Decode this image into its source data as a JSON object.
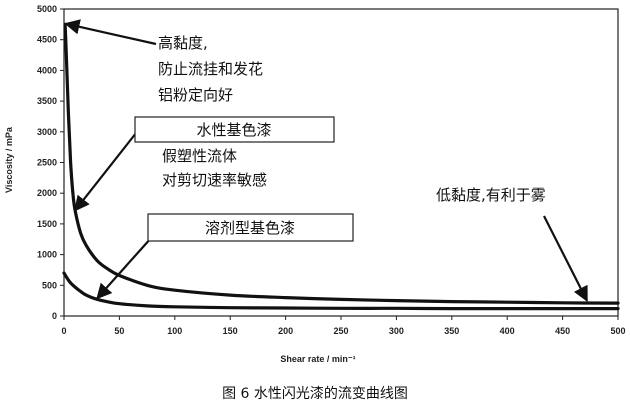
{
  "caption": "图 6 水性闪光漆的流变曲线图",
  "chart_data": {
    "type": "line",
    "xlabel": "Shear rate / min⁻¹",
    "ylabel": "Viscosity / mPa",
    "xlim": [
      0,
      500
    ],
    "ylim": [
      0,
      5000
    ],
    "x_ticks": [
      0,
      50,
      100,
      150,
      200,
      250,
      300,
      350,
      400,
      450,
      500
    ],
    "y_ticks": [
      0,
      500,
      1000,
      1500,
      2000,
      2500,
      3000,
      3500,
      4000,
      4500,
      5000
    ],
    "grid": false,
    "series": [
      {
        "name": "水性基色漆",
        "x": [
          1,
          2,
          4,
          6,
          8,
          10,
          15,
          20,
          30,
          40,
          50,
          75,
          100,
          150,
          200,
          250,
          300,
          350,
          400,
          450,
          500
        ],
        "y": [
          4750,
          4300,
          3300,
          2500,
          2000,
          1720,
          1350,
          1150,
          900,
          760,
          660,
          500,
          420,
          340,
          300,
          270,
          250,
          235,
          225,
          215,
          210
        ]
      },
      {
        "name": "溶剂型基色漆",
        "x": [
          0,
          5,
          10,
          15,
          20,
          30,
          40,
          50,
          75,
          100,
          150,
          200,
          250,
          300,
          350,
          400,
          450,
          500
        ],
        "y": [
          700,
          560,
          470,
          400,
          340,
          270,
          230,
          200,
          165,
          150,
          135,
          130,
          125,
          125,
          120,
          120,
          120,
          120
        ]
      }
    ],
    "annotations": [
      {
        "lines": [
          "高黏度,",
          "防止流挂和发花",
          "铝粉定向好"
        ],
        "x": 2,
        "y": 4780
      },
      {
        "lines": [
          "假塑性流体",
          "对剪切速率敏感"
        ],
        "x": 10,
        "y": 1700
      },
      {
        "lines": [
          "低黏度,有利于雾"
        ],
        "x": 480,
        "y": 230
      }
    ]
  }
}
